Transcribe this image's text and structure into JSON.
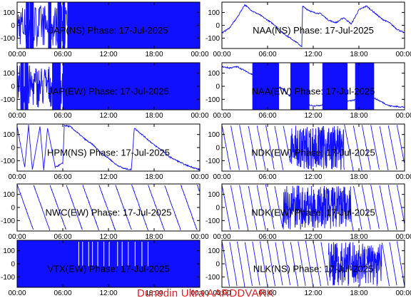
{
  "footer": "Dunedin Ultra AARDDVARK",
  "chart_data": [
    {
      "type": "line",
      "title": "JAP(NS) Phase: 17-Jul-2025",
      "xlabel": "",
      "ylabel": "",
      "xticks": [
        "00:00",
        "06:00",
        "12:00",
        "18:00",
        "00:00"
      ],
      "yticks": [
        100,
        0,
        -100
      ],
      "ylim": [
        -180,
        180
      ],
      "series": [
        {
          "kind": "noisyfill",
          "points": [
            [
              0,
              20
            ],
            [
              0.8,
              -60
            ],
            [
              1.6,
              40
            ],
            [
              2.4,
              -30
            ],
            [
              3.2,
              10
            ],
            [
              4.2,
              60
            ],
            [
              5,
              -80
            ],
            [
              6,
              0
            ],
            [
              24,
              0
            ]
          ],
          "fill_from": 6.6
        }
      ]
    },
    {
      "type": "line",
      "title": "NAA(NS) Phase: 17-Jul-2025",
      "xlabel": "",
      "ylabel": "",
      "xticks": [
        "00:00",
        "06:00",
        "12:00",
        "18:00",
        "00:00"
      ],
      "yticks": [
        100,
        0,
        -100
      ],
      "ylim": [
        -180,
        180
      ],
      "series": [
        {
          "kind": "trace",
          "points": [
            [
              0,
              -60
            ],
            [
              1,
              -20
            ],
            [
              2,
              60
            ],
            [
              3,
              160
            ],
            [
              4,
              110
            ],
            [
              5,
              80
            ],
            [
              6,
              40
            ],
            [
              7,
              0
            ],
            [
              8,
              -60
            ],
            [
              9,
              -100
            ],
            [
              10,
              -140
            ],
            [
              10.5,
              -170
            ],
            [
              10.6,
              150
            ],
            [
              11,
              130
            ],
            [
              12,
              100
            ],
            [
              13,
              90
            ],
            [
              14,
              40
            ],
            [
              15,
              20
            ],
            [
              16,
              60
            ],
            [
              17,
              10
            ],
            [
              18,
              120
            ],
            [
              19,
              150
            ],
            [
              20,
              100
            ],
            [
              21,
              50
            ],
            [
              22,
              20
            ],
            [
              23,
              -30
            ],
            [
              24,
              -60
            ]
          ]
        }
      ]
    },
    {
      "type": "line",
      "title": "JAP(EW) Phase: 17-Jul-2025",
      "xlabel": "",
      "ylabel": "",
      "xticks": [
        "00:00",
        "06:00",
        "12:00",
        "18:00",
        "00:00"
      ],
      "yticks": [
        100,
        0,
        -100
      ],
      "ylim": [
        -180,
        180
      ],
      "series": [
        {
          "kind": "noisyfill",
          "points": [
            [
              0,
              10
            ],
            [
              1,
              -50
            ],
            [
              2,
              30
            ],
            [
              3,
              -20
            ],
            [
              4,
              40
            ],
            [
              5,
              -90
            ],
            [
              6,
              0
            ],
            [
              24,
              0
            ]
          ],
          "fill_from": 6.4
        }
      ]
    },
    {
      "type": "line",
      "title": "NAA(EW) Phase: 17-Jul-2025",
      "xlabel": "",
      "ylabel": "",
      "xticks": [
        "00:00",
        "06:00",
        "12:00",
        "18:00",
        "00:00"
      ],
      "yticks": [
        100,
        0,
        -100
      ],
      "ylim": [
        -180,
        180
      ],
      "series": [
        {
          "kind": "bandsfill",
          "bands": [
            [
              4,
              7.5
            ],
            [
              9,
              11.5
            ],
            [
              13.2,
              16.5
            ],
            [
              17.5,
              20
            ]
          ],
          "points": [
            [
              0,
              150
            ],
            [
              1,
              140
            ],
            [
              2,
              150
            ],
            [
              3,
              120
            ],
            [
              4,
              90
            ],
            [
              6,
              40
            ],
            [
              8,
              -20
            ],
            [
              9,
              -80
            ],
            [
              10,
              -120
            ],
            [
              12,
              -150
            ],
            [
              14,
              -140
            ],
            [
              16,
              -120
            ],
            [
              18,
              -100
            ],
            [
              20,
              -90
            ],
            [
              22,
              -150
            ],
            [
              24,
              -160
            ]
          ]
        }
      ]
    },
    {
      "type": "line",
      "title": "HPM(NS) Phase: 17-Jul-2025",
      "xlabel": "",
      "ylabel": "",
      "xticks": [
        "00:00",
        "06:00",
        "12:00",
        "18:00",
        "00:00"
      ],
      "yticks": [
        100,
        0,
        -100
      ],
      "ylim": [
        -180,
        180
      ],
      "series": [
        {
          "kind": "trace",
          "points": [
            [
              0,
              160
            ],
            [
              1,
              -150
            ],
            [
              1.5,
              170
            ],
            [
              2,
              -170
            ],
            [
              3,
              160
            ],
            [
              3.5,
              -170
            ],
            [
              4,
              150
            ],
            [
              5,
              -150
            ],
            [
              6,
              -120
            ],
            [
              6.2,
              170
            ],
            [
              7,
              160
            ],
            [
              8,
              110
            ],
            [
              9,
              60
            ],
            [
              10,
              20
            ],
            [
              11,
              -40
            ],
            [
              12,
              -80
            ],
            [
              13,
              -130
            ],
            [
              14,
              -160
            ],
            [
              15,
              -170
            ],
            [
              15.4,
              150
            ],
            [
              16,
              120
            ],
            [
              17,
              70
            ],
            [
              18,
              20
            ],
            [
              19,
              -20
            ],
            [
              20,
              -70
            ],
            [
              21,
              -100
            ],
            [
              22,
              -130
            ],
            [
              23,
              -150
            ],
            [
              24,
              -170
            ]
          ]
        }
      ]
    },
    {
      "type": "line",
      "title": "NDK(EW) Phase: 17-Jul-2025",
      "xlabel": "",
      "ylabel": "",
      "xticks": [
        "00:00",
        "06:00",
        "12:00",
        "18:00",
        "00:00"
      ],
      "yticks": [
        100,
        0,
        -100
      ],
      "ylim": [
        -180,
        180
      ],
      "series": [
        {
          "kind": "sawtooth",
          "period": 1.15,
          "noise_range": [
            9,
            16
          ]
        }
      ]
    },
    {
      "type": "line",
      "title": "NWC(EW) Phase: 17-Jul-2025",
      "xlabel": "",
      "ylabel": "",
      "xticks": [
        "00:00",
        "06:00",
        "12:00",
        "18:00",
        "00:00"
      ],
      "yticks": [
        100,
        0,
        -100
      ],
      "ylim": [
        -180,
        180
      ],
      "series": [
        {
          "kind": "sawtooth",
          "period": 2.15,
          "noise_range": []
        }
      ]
    },
    {
      "type": "line",
      "title": "NDK(EW) Phase: 17-Jul-2025",
      "xlabel": "",
      "ylabel": "",
      "xticks": [
        "00:00",
        "06:00",
        "12:00",
        "18:00",
        "00:00"
      ],
      "yticks": [
        100,
        0,
        -100
      ],
      "ylim": [
        -180,
        180
      ],
      "series": [
        {
          "kind": "sawtooth",
          "period": 1.15,
          "noise_range": [
            8,
            17
          ]
        }
      ]
    },
    {
      "type": "line",
      "title": "VTX(EW) Phase: 17-Jul-2025",
      "xlabel": "",
      "ylabel": "",
      "xticks": [
        "00:00",
        "06:00",
        "12:00",
        "18:00",
        "00:00"
      ],
      "yticks": [
        100,
        0,
        -100
      ],
      "ylim": [
        -180,
        180
      ],
      "series": [
        {
          "kind": "fullfill",
          "gaps": [
            8.1,
            8.6,
            9.4,
            9.9,
            10.6,
            11.4,
            12.1,
            13.2,
            13.8,
            14.6,
            15.5,
            16.4,
            17.2
          ]
        }
      ]
    },
    {
      "type": "line",
      "title": "NLK(NS) Phase: 17-Jul-2025",
      "xlabel": "",
      "ylabel": "",
      "xticks": [
        "00:00",
        "06:00",
        "12:00",
        "18:00",
        "00:00"
      ],
      "yticks": [
        100,
        0,
        -100
      ],
      "ylim": [
        -180,
        180
      ],
      "series": [
        {
          "kind": "sawtooth",
          "period": 1.0,
          "noise_range": [
            14,
            21
          ]
        }
      ]
    }
  ]
}
